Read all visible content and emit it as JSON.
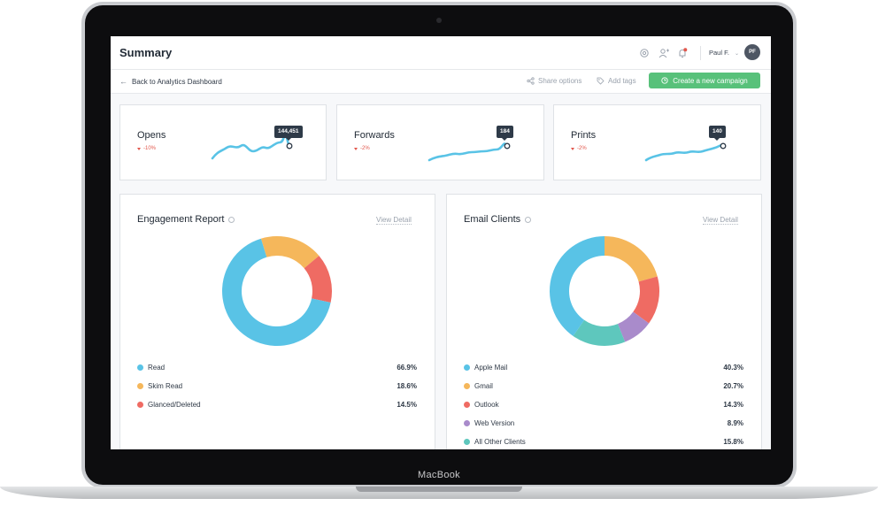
{
  "device": {
    "label": "MacBook"
  },
  "header": {
    "title": "Summary",
    "user_name": "Paul F.",
    "user_initials": "PF"
  },
  "subheader": {
    "back_label": "Back to Analytics Dashboard",
    "share_label": "Share options",
    "tags_label": "Add tags",
    "campaign_label": "Create a new campaign"
  },
  "stats": [
    {
      "title": "Opens",
      "change": "-10%",
      "tooltip": "144,451"
    },
    {
      "title": "Forwards",
      "change": "-2%",
      "tooltip": "184"
    },
    {
      "title": "Prints",
      "change": "-2%",
      "tooltip": "140"
    }
  ],
  "engagement": {
    "title": "Engagement Report",
    "view_detail": "View Detail",
    "items": [
      {
        "label": "Read",
        "value": "66.9%",
        "pct": 66.9,
        "color": "#59c3e6"
      },
      {
        "label": "Skim Read",
        "value": "18.6%",
        "pct": 18.6,
        "color": "#f5b75b"
      },
      {
        "label": "Glanced/Deleted",
        "value": "14.5%",
        "pct": 14.5,
        "color": "#ef6b63"
      }
    ]
  },
  "clients": {
    "title": "Email Clients",
    "view_detail": "View Detail",
    "items": [
      {
        "label": "Apple Mail",
        "value": "40.3%",
        "pct": 40.3,
        "color": "#59c3e6"
      },
      {
        "label": "Gmail",
        "value": "20.7%",
        "pct": 20.7,
        "color": "#f5b75b"
      },
      {
        "label": "Outlook",
        "value": "14.3%",
        "pct": 14.3,
        "color": "#ef6b63"
      },
      {
        "label": "Web Version",
        "value": "8.9%",
        "pct": 8.9,
        "color": "#a98bcb"
      },
      {
        "label": "All Other Clients",
        "value": "15.8%",
        "pct": 15.8,
        "color": "#5ec7bd"
      }
    ]
  }
}
